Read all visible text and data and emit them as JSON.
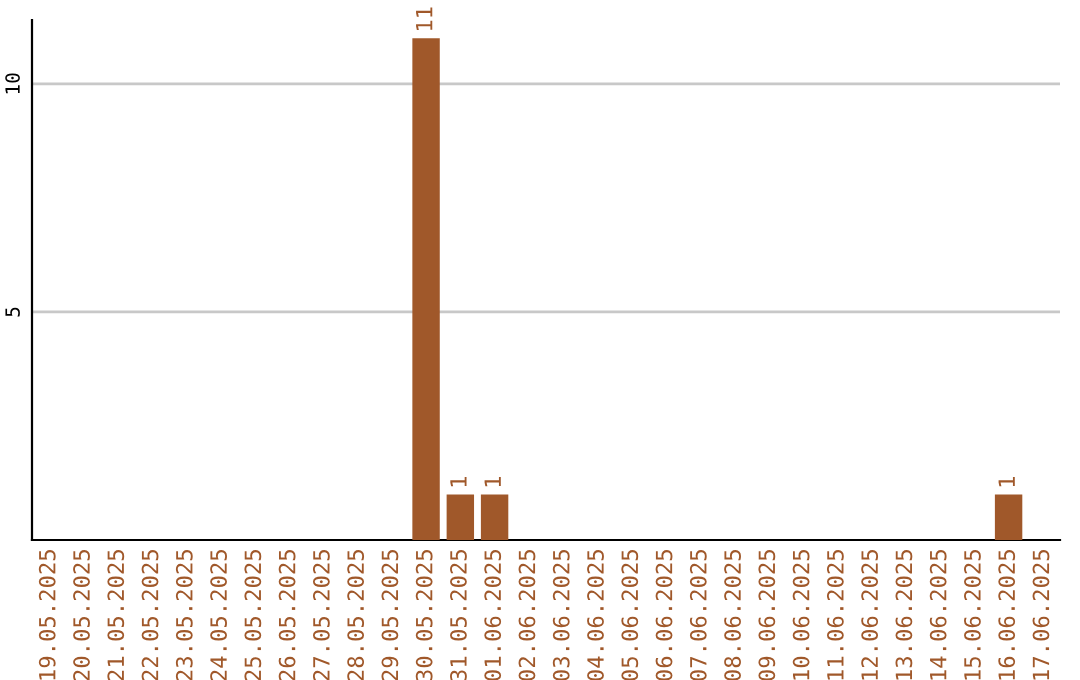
{
  "chart_data": {
    "type": "bar",
    "categories": [
      "19.05.2025",
      "20.05.2025",
      "21.05.2025",
      "22.05.2025",
      "23.05.2025",
      "24.05.2025",
      "25.05.2025",
      "26.05.2025",
      "27.05.2025",
      "28.05.2025",
      "29.05.2025",
      "30.05.2025",
      "31.05.2025",
      "01.06.2025",
      "02.06.2025",
      "03.06.2025",
      "04.06.2025",
      "05.06.2025",
      "06.06.2025",
      "07.06.2025",
      "08.06.2025",
      "09.06.2025",
      "10.06.2025",
      "11.06.2025",
      "12.06.2025",
      "13.06.2025",
      "14.06.2025",
      "15.06.2025",
      "16.06.2025",
      "17.06.2025"
    ],
    "values": [
      0,
      0,
      0,
      0,
      0,
      0,
      0,
      0,
      0,
      0,
      0,
      11,
      1,
      1,
      0,
      0,
      0,
      0,
      0,
      0,
      0,
      0,
      0,
      0,
      0,
      0,
      0,
      0,
      1,
      0
    ],
    "value_labels": [
      null,
      null,
      null,
      null,
      null,
      null,
      null,
      null,
      null,
      null,
      null,
      "11",
      "1",
      "1",
      null,
      null,
      null,
      null,
      null,
      null,
      null,
      null,
      null,
      null,
      null,
      null,
      null,
      null,
      "1",
      null
    ],
    "color": "#a0582a",
    "ylim": [
      0,
      11.4
    ],
    "yticks": [
      5,
      10
    ],
    "grid": "y",
    "legend": false
  }
}
